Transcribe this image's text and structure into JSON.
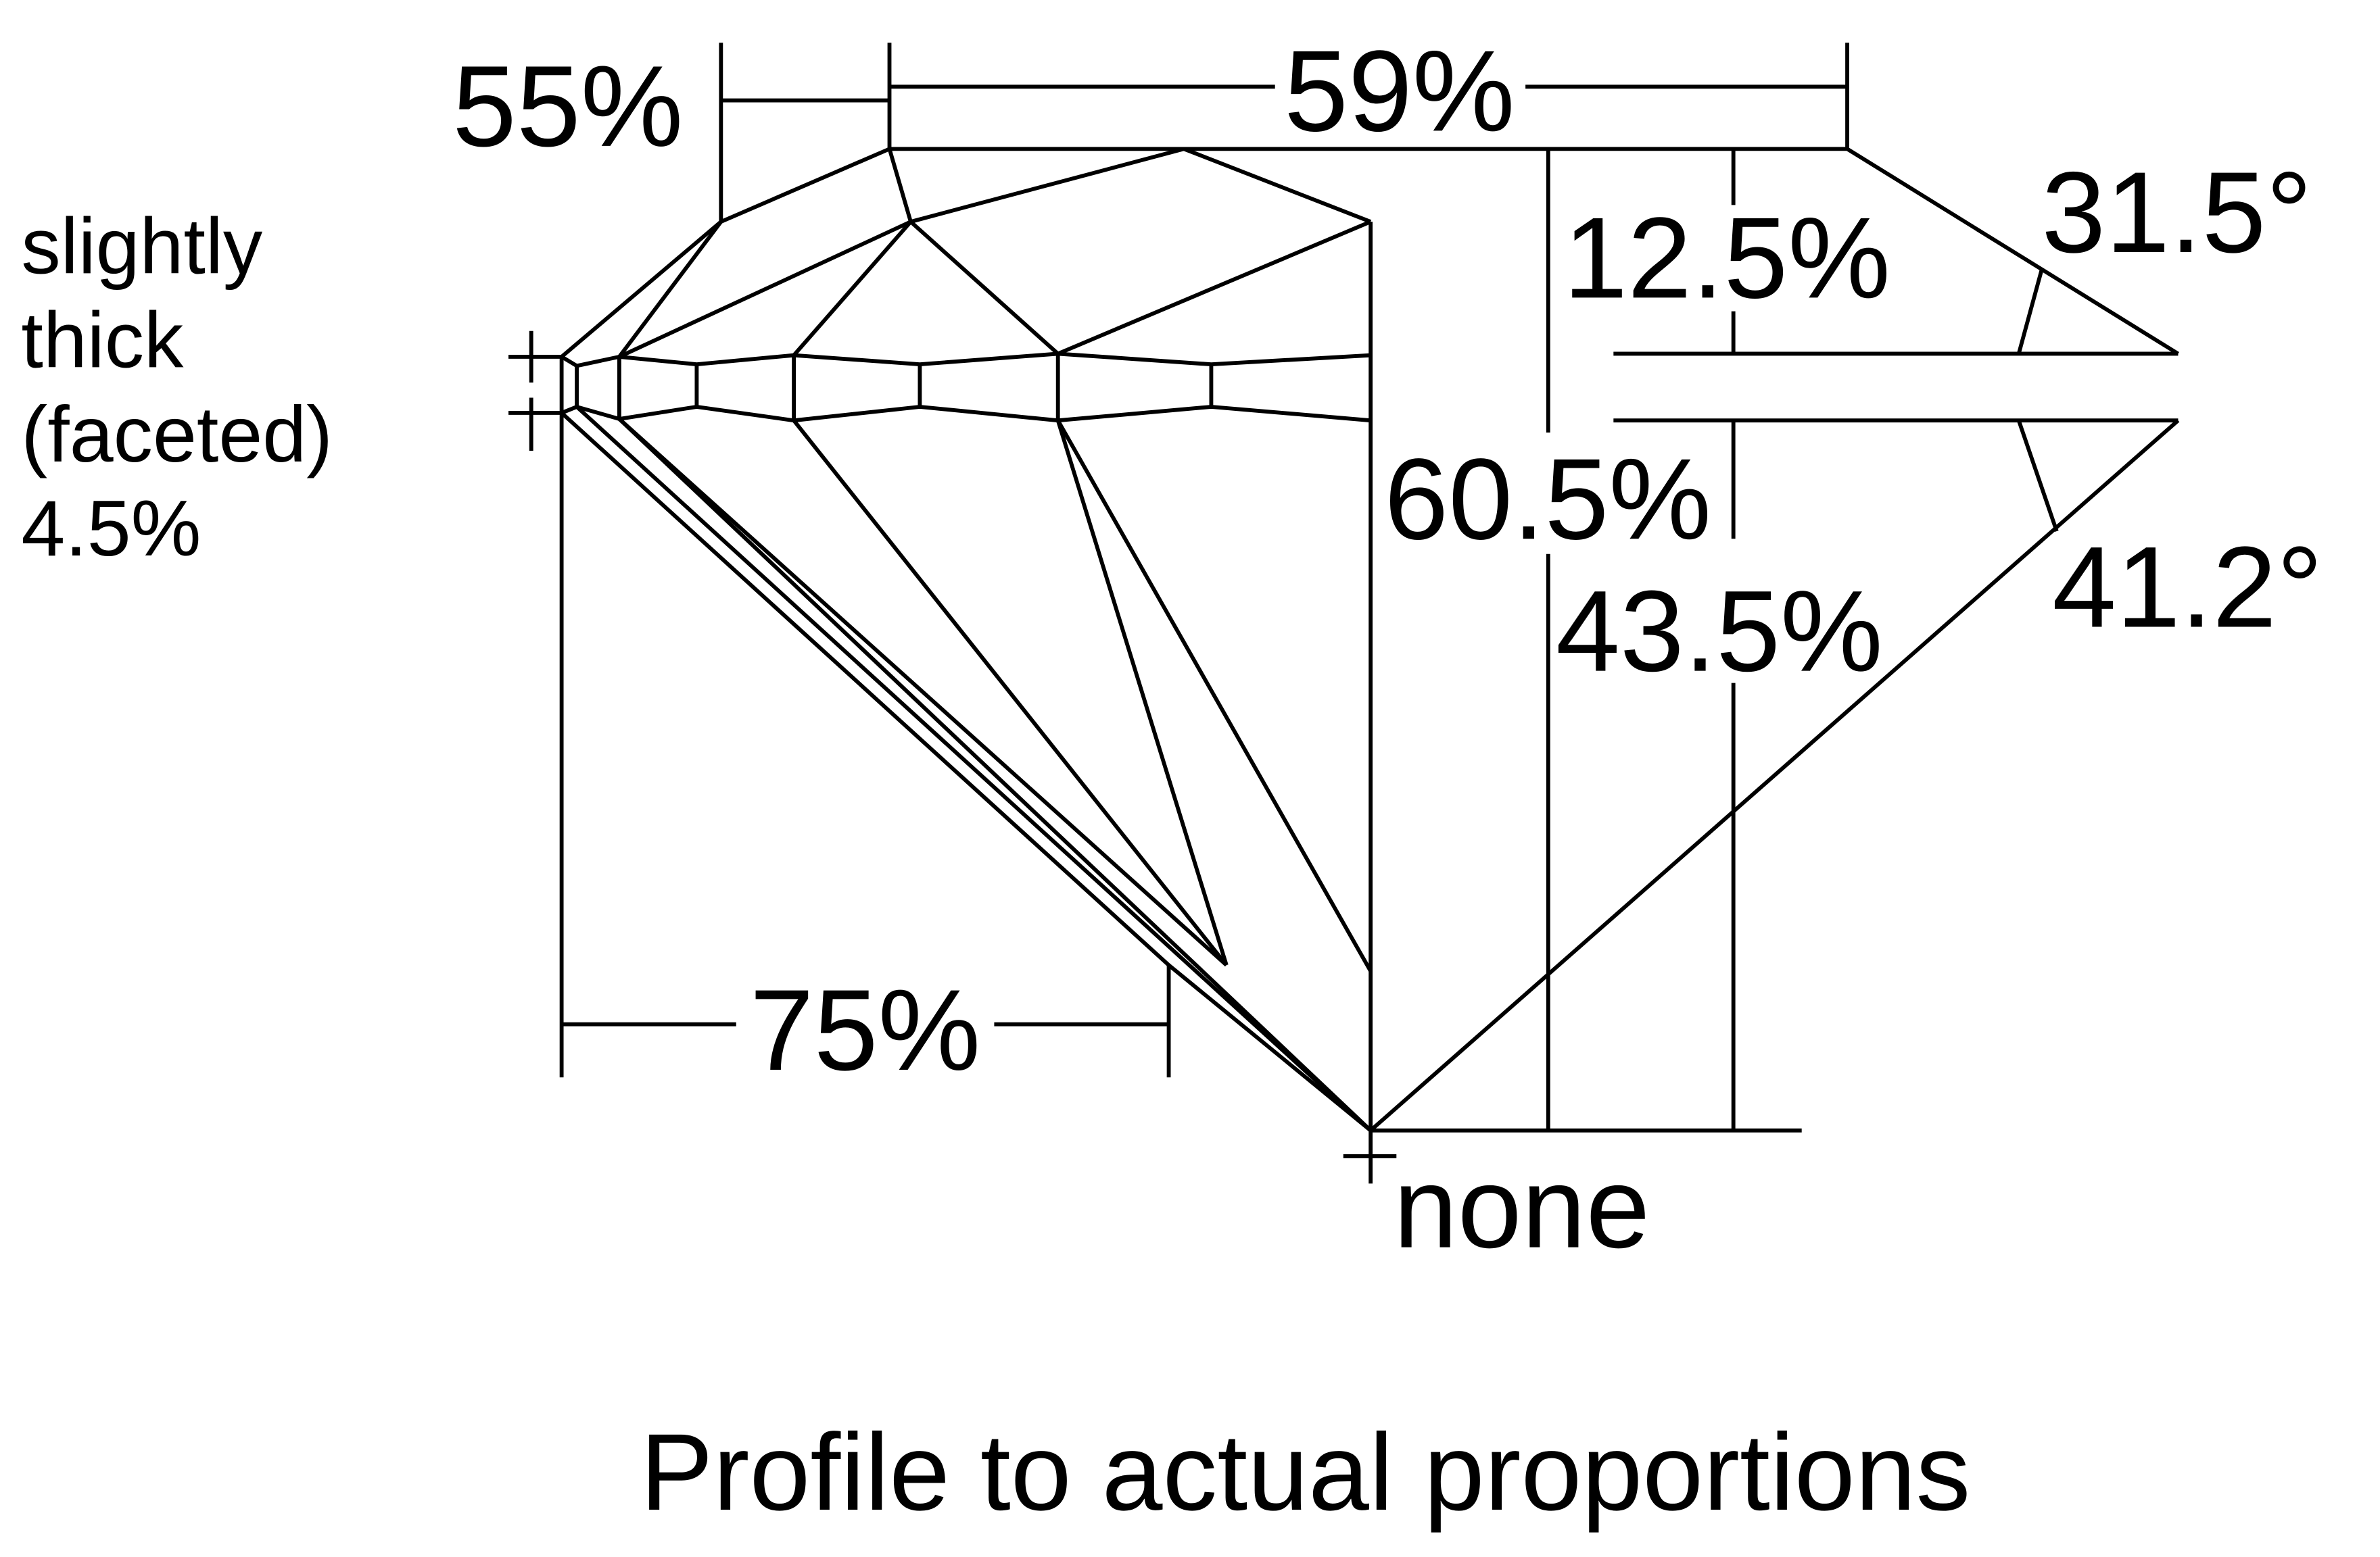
{
  "diagram": {
    "title": "Profile to actual proportions",
    "labels": {
      "crown_height_small": "55%",
      "table": "59%",
      "crown_height": "12.5%",
      "crown_angle": "31.5°",
      "total_depth": "60.5%",
      "pavilion_depth": "43.5%",
      "pavilion_angle": "41.2°",
      "lower_half": "75%",
      "culet": "none",
      "girdle": [
        "slightly",
        "thick",
        "(faceted)",
        "4.5%"
      ]
    },
    "line_color": "#000000",
    "background": "#ffffff"
  }
}
